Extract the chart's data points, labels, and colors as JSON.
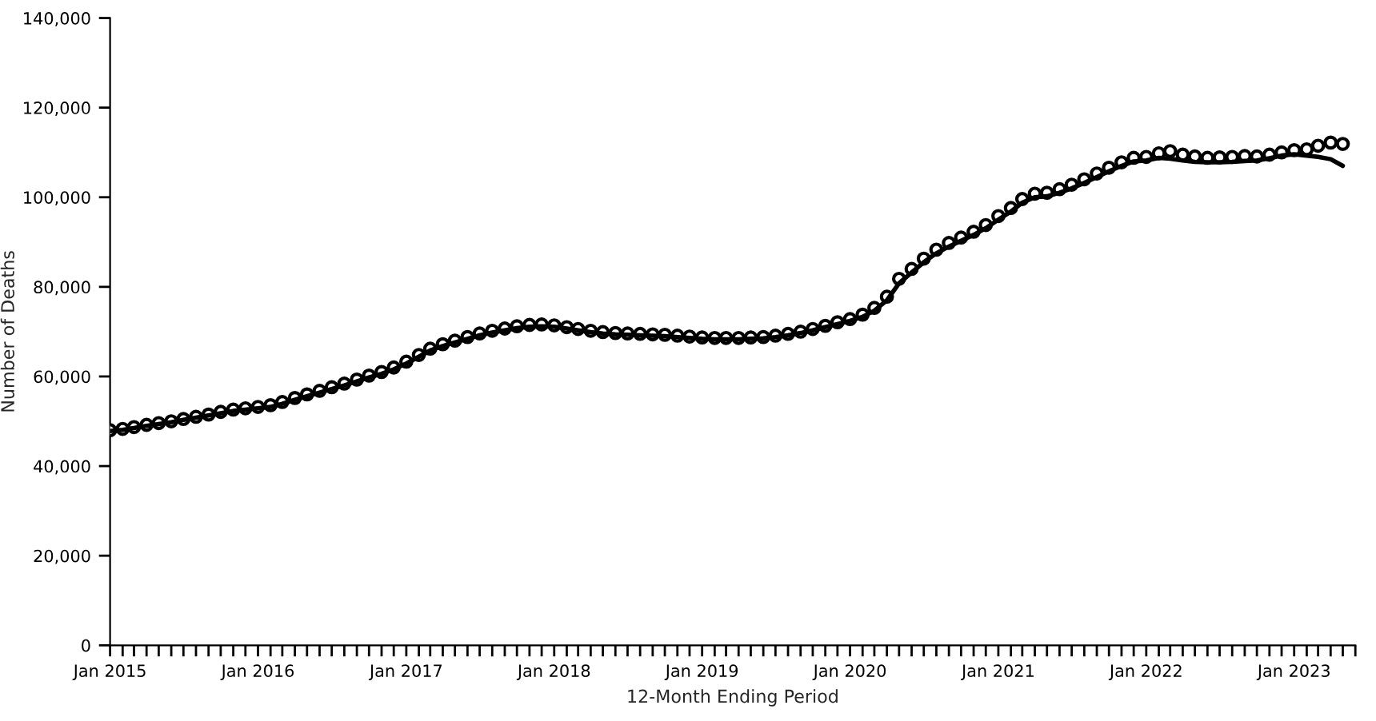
{
  "chart_data": {
    "type": "line",
    "xlabel": "12-Month Ending Period",
    "ylabel": "Number of Deaths",
    "x": [
      "2015-01",
      "2015-02",
      "2015-03",
      "2015-04",
      "2015-05",
      "2015-06",
      "2015-07",
      "2015-08",
      "2015-09",
      "2015-10",
      "2015-11",
      "2015-12",
      "2016-01",
      "2016-02",
      "2016-03",
      "2016-04",
      "2016-05",
      "2016-06",
      "2016-07",
      "2016-08",
      "2016-09",
      "2016-10",
      "2016-11",
      "2016-12",
      "2017-01",
      "2017-02",
      "2017-03",
      "2017-04",
      "2017-05",
      "2017-06",
      "2017-07",
      "2017-08",
      "2017-09",
      "2017-10",
      "2017-11",
      "2017-12",
      "2018-01",
      "2018-02",
      "2018-03",
      "2018-04",
      "2018-05",
      "2018-06",
      "2018-07",
      "2018-08",
      "2018-09",
      "2018-10",
      "2018-11",
      "2018-12",
      "2019-01",
      "2019-02",
      "2019-03",
      "2019-04",
      "2019-05",
      "2019-06",
      "2019-07",
      "2019-08",
      "2019-09",
      "2019-10",
      "2019-11",
      "2019-12",
      "2020-01",
      "2020-02",
      "2020-03",
      "2020-04",
      "2020-05",
      "2020-06",
      "2020-07",
      "2020-08",
      "2020-09",
      "2020-10",
      "2020-11",
      "2020-12",
      "2021-01",
      "2021-02",
      "2021-03",
      "2021-04",
      "2021-05",
      "2021-06",
      "2021-07",
      "2021-08",
      "2021-09",
      "2021-10",
      "2021-11",
      "2021-12",
      "2022-01",
      "2022-02",
      "2022-03",
      "2022-04",
      "2022-05",
      "2022-06",
      "2022-07",
      "2022-08",
      "2022-09",
      "2022-10",
      "2022-11",
      "2022-12",
      "2023-01",
      "2023-02",
      "2023-03",
      "2023-04",
      "2023-05"
    ],
    "series": [
      {
        "color": "#000000",
        "marker": "none",
        "line_style": "solid",
        "values": [
          47800,
          48100,
          48500,
          49000,
          49400,
          49800,
          50300,
          50800,
          51300,
          51800,
          52300,
          52600,
          52900,
          53200,
          53900,
          54800,
          55600,
          56400,
          57200,
          58000,
          58900,
          59800,
          60600,
          61600,
          62900,
          64400,
          65800,
          66800,
          67600,
          68400,
          69200,
          69800,
          70300,
          70800,
          71100,
          71200,
          71100,
          70700,
          70300,
          69900,
          69600,
          69400,
          69300,
          69200,
          69100,
          69000,
          68800,
          68600,
          68400,
          68300,
          68300,
          68300,
          68400,
          68500,
          68800,
          69200,
          69700,
          70300,
          71000,
          71700,
          72400,
          73300,
          74700,
          77000,
          80800,
          83200,
          85500,
          87500,
          89000,
          90300,
          91600,
          93100,
          95000,
          96800,
          98800,
          100000,
          100200,
          101000,
          102000,
          103200,
          104500,
          105800,
          107000,
          108000,
          108200,
          108800,
          108600,
          108200,
          107900,
          107800,
          107800,
          107900,
          108100,
          108200,
          108700,
          109300,
          109600,
          109300,
          109000,
          108500,
          107000
        ]
      },
      {
        "type": "scatter",
        "color": "#000000",
        "marker": "circle",
        "values": [
          48000,
          48300,
          48700,
          49200,
          49600,
          50000,
          50500,
          51000,
          51500,
          52100,
          52600,
          52900,
          53200,
          53600,
          54300,
          55200,
          56000,
          56800,
          57600,
          58400,
          59300,
          60200,
          61000,
          62000,
          63300,
          64800,
          66200,
          67200,
          68000,
          68800,
          69600,
          70200,
          70700,
          71200,
          71500,
          71600,
          71400,
          71000,
          70600,
          70200,
          69900,
          69700,
          69600,
          69500,
          69400,
          69300,
          69100,
          68900,
          68700,
          68600,
          68600,
          68600,
          68700,
          68800,
          69100,
          69500,
          70000,
          70600,
          71300,
          72100,
          72800,
          73800,
          75300,
          77800,
          81800,
          84000,
          86300,
          88300,
          89800,
          91000,
          92300,
          93800,
          95800,
          97600,
          99600,
          100800,
          101000,
          101800,
          102800,
          104000,
          105300,
          106600,
          107800,
          108800,
          109000,
          109800,
          110300,
          109500,
          109100,
          108800,
          108900,
          109000,
          109200,
          109100,
          109500,
          110000,
          110500,
          110700,
          111500,
          112200,
          111900
        ]
      }
    ],
    "ylim": [
      0,
      140000
    ],
    "yticks": [
      0,
      {
        "value": 20000,
        "label": "20,000"
      },
      {
        "value": 40000,
        "label": "40,000"
      },
      {
        "value": 60000,
        "label": "60,000"
      },
      {
        "value": 80000,
        "label": "80,000"
      },
      {
        "value": 100000,
        "label": "100,000"
      },
      {
        "value": 120000,
        "label": "120,000"
      },
      {
        "value": 140000,
        "label": "140,000"
      }
    ],
    "xlim": [
      "2015-01",
      "2023-06"
    ],
    "xticks": [
      {
        "value": "2015-01",
        "label": "Jan 2015"
      },
      {
        "value": "2015-02",
        "label": null
      },
      {
        "value": "2015-03",
        "label": null
      },
      {
        "value": "2015-04",
        "label": null
      },
      {
        "value": "2015-05",
        "label": null
      },
      {
        "value": "2015-06",
        "label": null
      },
      {
        "value": "2015-07",
        "label": null
      },
      {
        "value": "2015-08",
        "label": null
      },
      {
        "value": "2015-09",
        "label": null
      },
      {
        "value": "2015-10",
        "label": null
      },
      {
        "value": "2015-11",
        "label": null
      },
      {
        "value": "2015-12",
        "label": null
      },
      {
        "value": "2016-01",
        "label": "Jan 2016"
      },
      {
        "value": "2016-02",
        "label": null
      },
      {
        "value": "2016-03",
        "label": null
      },
      {
        "value": "2016-04",
        "label": null
      },
      {
        "value": "2016-05",
        "label": null
      },
      {
        "value": "2016-06",
        "label": null
      },
      {
        "value": "2016-07",
        "label": null
      },
      {
        "value": "2016-08",
        "label": null
      },
      {
        "value": "2016-09",
        "label": null
      },
      {
        "value": "2016-10",
        "label": null
      },
      {
        "value": "2016-11",
        "label": null
      },
      {
        "value": "2016-12",
        "label": null
      },
      {
        "value": "2017-01",
        "label": "Jan 2017"
      },
      {
        "value": "2017-02",
        "label": null
      },
      {
        "value": "2017-03",
        "label": null
      },
      {
        "value": "2017-04",
        "label": null
      },
      {
        "value": "2017-05",
        "label": null
      },
      {
        "value": "2017-06",
        "label": null
      },
      {
        "value": "2017-07",
        "label": null
      },
      {
        "value": "2017-08",
        "label": null
      },
      {
        "value": "2017-09",
        "label": null
      },
      {
        "value": "2017-10",
        "label": null
      },
      {
        "value": "2017-11",
        "label": null
      },
      {
        "value": "2017-12",
        "label": null
      },
      {
        "value": "2018-01",
        "label": "Jan 2018"
      },
      {
        "value": "2018-02",
        "label": null
      },
      {
        "value": "2018-03",
        "label": null
      },
      {
        "value": "2018-04",
        "label": null
      },
      {
        "value": "2018-05",
        "label": null
      },
      {
        "value": "2018-06",
        "label": null
      },
      {
        "value": "2018-07",
        "label": null
      },
      {
        "value": "2018-08",
        "label": null
      },
      {
        "value": "2018-09",
        "label": null
      },
      {
        "value": "2018-10",
        "label": null
      },
      {
        "value": "2018-11",
        "label": null
      },
      {
        "value": "2018-12",
        "label": null
      },
      {
        "value": "2019-01",
        "label": "Jan 2019"
      },
      {
        "value": "2019-02",
        "label": null
      },
      {
        "value": "2019-03",
        "label": null
      },
      {
        "value": "2019-04",
        "label": null
      },
      {
        "value": "2019-05",
        "label": null
      },
      {
        "value": "2019-06",
        "label": null
      },
      {
        "value": "2019-07",
        "label": null
      },
      {
        "value": "2019-08",
        "label": null
      },
      {
        "value": "2019-09",
        "label": null
      },
      {
        "value": "2019-10",
        "label": null
      },
      {
        "value": "2019-11",
        "label": null
      },
      {
        "value": "2019-12",
        "label": null
      },
      {
        "value": "2020-01",
        "label": "Jan 2020"
      },
      {
        "value": "2020-02",
        "label": null
      },
      {
        "value": "2020-03",
        "label": null
      },
      {
        "value": "2020-04",
        "label": null
      },
      {
        "value": "2020-05",
        "label": null
      },
      {
        "value": "2020-06",
        "label": null
      },
      {
        "value": "2020-07",
        "label": null
      },
      {
        "value": "2020-08",
        "label": null
      },
      {
        "value": "2020-09",
        "label": null
      },
      {
        "value": "2020-10",
        "label": null
      },
      {
        "value": "2020-11",
        "label": null
      },
      {
        "value": "2020-12",
        "label": null
      },
      {
        "value": "2021-01",
        "label": "Jan 2021"
      },
      {
        "value": "2021-02",
        "label": null
      },
      {
        "value": "2021-03",
        "label": null
      },
      {
        "value": "2021-04",
        "label": null
      },
      {
        "value": "2021-05",
        "label": null
      },
      {
        "value": "2021-06",
        "label": null
      },
      {
        "value": "2021-07",
        "label": null
      },
      {
        "value": "2021-08",
        "label": null
      },
      {
        "value": "2021-09",
        "label": null
      },
      {
        "value": "2021-10",
        "label": null
      },
      {
        "value": "2021-11",
        "label": null
      },
      {
        "value": "2021-12",
        "label": null
      },
      {
        "value": "2022-01",
        "label": "Jan 2022"
      },
      {
        "value": "2022-02",
        "label": null
      },
      {
        "value": "2022-03",
        "label": null
      },
      {
        "value": "2022-04",
        "label": null
      },
      {
        "value": "2022-05",
        "label": null
      },
      {
        "value": "2022-06",
        "label": null
      },
      {
        "value": "2022-07",
        "label": null
      },
      {
        "value": "2022-08",
        "label": null
      },
      {
        "value": "2022-09",
        "label": null
      },
      {
        "value": "2022-10",
        "label": null
      },
      {
        "value": "2022-11",
        "label": null
      },
      {
        "value": "2022-12",
        "label": null
      },
      {
        "value": "2023-01",
        "label": "Jan 2023"
      },
      {
        "value": "2023-02",
        "label": null
      },
      {
        "value": "2023-03",
        "label": null
      },
      {
        "value": "2023-04",
        "label": null
      },
      {
        "value": "2023-05",
        "label": null
      },
      {
        "value": "2023-06",
        "label": null
      }
    ],
    "grid": false,
    "legend": false
  }
}
